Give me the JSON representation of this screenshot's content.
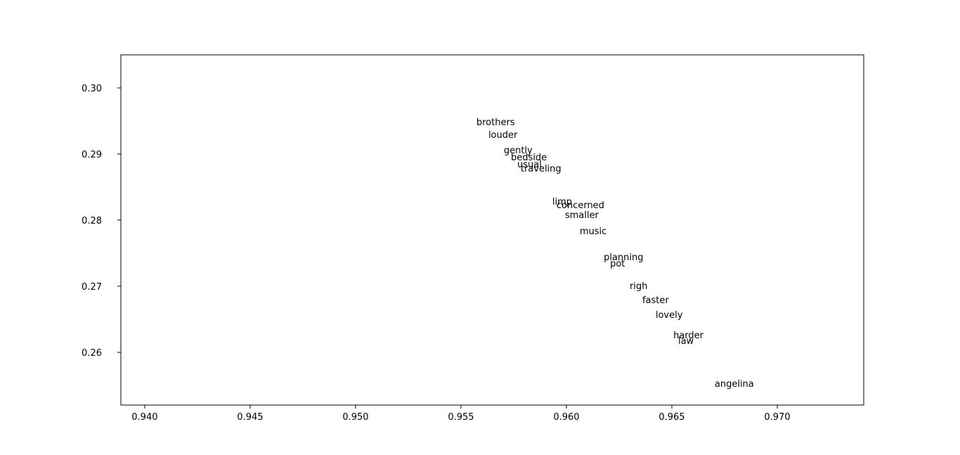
{
  "chart_data": {
    "type": "scatter",
    "labels": [
      "brothers",
      "louder",
      "gently",
      "bedside",
      "usual",
      "traveling",
      "limp",
      "concerned",
      "smaller",
      "music",
      "planning",
      "pot",
      "righ",
      "faster",
      "lovely",
      "harder",
      "law",
      "angelina"
    ],
    "x": [
      0.95573,
      0.9563,
      0.95703,
      0.95737,
      0.95767,
      0.95783,
      0.95933,
      0.95953,
      0.95993,
      0.96063,
      0.96177,
      0.96207,
      0.963,
      0.9636,
      0.96423,
      0.96507,
      0.9653,
      0.96703
    ],
    "values": [
      0.29436,
      0.29245,
      0.29011,
      0.28904,
      0.28798,
      0.28734,
      0.28234,
      0.28181,
      0.28032,
      0.27787,
      0.27394,
      0.27298,
      0.26957,
      0.26745,
      0.26521,
      0.26213,
      0.26128,
      0.25479
    ],
    "color": "#000000",
    "xlim": [
      0.93887,
      0.9741
    ],
    "ylim": [
      0.25202,
      0.305
    ],
    "xticks": [
      {
        "value": 0.94,
        "label": "0.940"
      },
      {
        "value": 0.945,
        "label": "0.945"
      },
      {
        "value": 0.95,
        "label": "0.950"
      },
      {
        "value": 0.955,
        "label": "0.955"
      },
      {
        "value": 0.96,
        "label": "0.960"
      },
      {
        "value": 0.965,
        "label": "0.965"
      },
      {
        "value": 0.97,
        "label": "0.970"
      }
    ],
    "yticks": [
      0.26,
      0.27,
      0.28,
      0.29,
      {
        "value": 0.3,
        "label": "0.30"
      }
    ],
    "grid": false
  }
}
